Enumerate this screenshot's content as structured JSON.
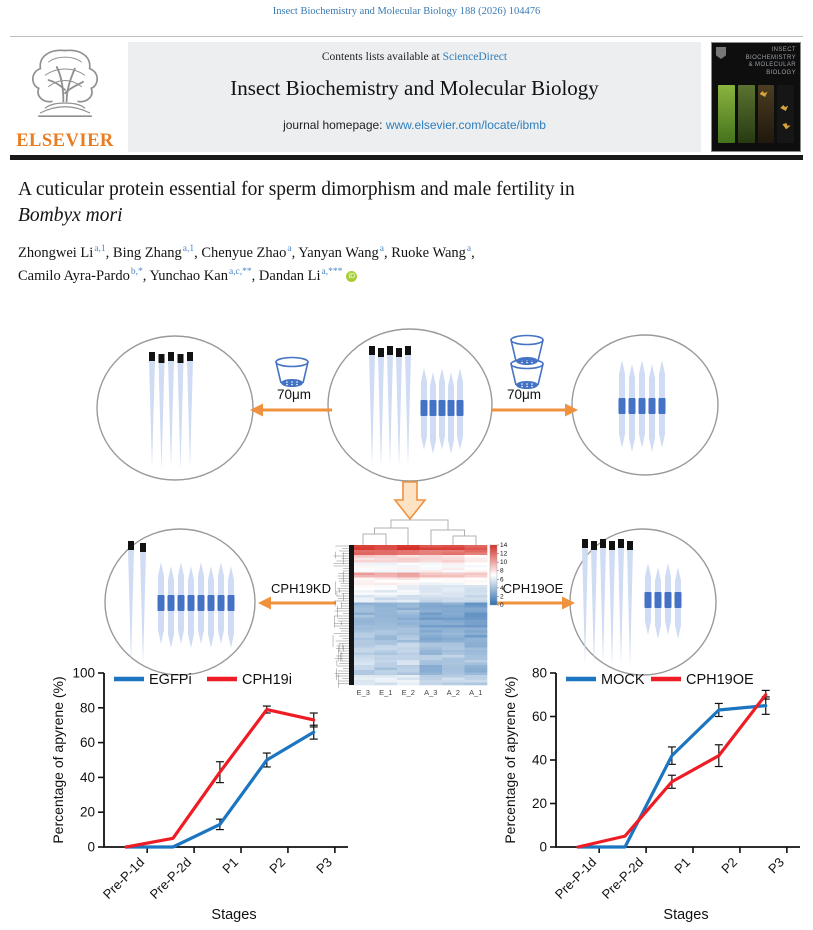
{
  "page": {
    "citation": "Insect Biochemistry and Molecular Biology 188 (2026) 104476"
  },
  "banner": {
    "contents_line_prefix": "Contents lists available at ",
    "sciencedirect": "ScienceDirect",
    "journal_title": "Insect Biochemistry and Molecular Biology",
    "homepage_prefix": "journal homepage: ",
    "homepage_url": "www.elsevier.com/locate/ibmb",
    "elsevier_logo_text": "ELSEVIER",
    "cover_title": "INSECT BIOCHEMISTRY & MOLECULAR BIOLOGY"
  },
  "article": {
    "title_line1": "A cuticular protein essential for sperm dimorphism and male fertility in",
    "title_line2": "Bombyx mori",
    "authors": [
      {
        "name": "Zhongwei Li",
        "sup": "a,1"
      },
      {
        "name": "Bing Zhang",
        "sup": "a,1"
      },
      {
        "name": "Chenyue Zhao",
        "sup": "a"
      },
      {
        "name": "Yanyan Wang",
        "sup": "a"
      },
      {
        "name": "Ruoke Wang",
        "sup": "a"
      },
      {
        "name": "Camilo Ayra-Pardo",
        "sup": "b,*"
      },
      {
        "name": "Yunchao Kan",
        "sup": "a,c,**"
      },
      {
        "name": "Dandan Li",
        "sup": "a,***",
        "orcid": true
      }
    ]
  },
  "abstract_figure": {
    "filter_label_left": "70μm",
    "filter_label_right": "70μm",
    "knockdown_label": "CPH19KD",
    "overexpression_label": "CPH19OE",
    "circles": [
      {
        "id": "pool-eupyrene",
        "eupyrene": 5,
        "apyrene": 0
      },
      {
        "id": "pool-mixed",
        "eupyrene": 5,
        "apyrene": 5
      },
      {
        "id": "pool-apyrene",
        "eupyrene": 0,
        "apyrene": 5
      },
      {
        "id": "cph19kd-result",
        "eupyrene": 2,
        "apyrene": 8
      },
      {
        "id": "cph19oe-result",
        "eupyrene": 6,
        "apyrene": 4
      }
    ],
    "heatmap": {
      "colorbar_ticks": [
        "14",
        "12",
        "10",
        "8",
        "6",
        "4",
        "2",
        "0"
      ],
      "column_labels": [
        "E_3",
        "E_1",
        "E_2",
        "A_3",
        "A_2",
        "A_1"
      ],
      "value_range": [
        0,
        14
      ],
      "bands": [
        {
          "count": 2,
          "E": 13.5,
          "A": 13.0
        },
        {
          "count": 2,
          "E": 11.5,
          "A": 11.8
        },
        {
          "count": 3,
          "E": 8.2,
          "A": 8.0
        },
        {
          "count": 4,
          "E": 6.8,
          "A": 7.2
        },
        {
          "count": 2,
          "E": 9.8,
          "A": 9.2
        },
        {
          "count": 3,
          "E": 7.4,
          "A": 7.0
        },
        {
          "count": 4,
          "E": 6.4,
          "A": 6.0
        },
        {
          "count": 3,
          "E": 5.6,
          "A": 5.2
        },
        {
          "count": 10,
          "E": 3.4,
          "A": 2.6
        },
        {
          "count": 6,
          "E": 4.0,
          "A": 3.0
        },
        {
          "count": 5,
          "E": 4.6,
          "A": 3.8
        },
        {
          "count": 4,
          "E": 5.2,
          "A": 4.4
        },
        {
          "count": 4,
          "E": 4.4,
          "A": 3.6
        },
        {
          "count": 4,
          "E": 5.8,
          "A": 5.0
        }
      ]
    }
  },
  "chart_data": [
    {
      "id": "knockdown-chart",
      "type": "line",
      "categories": [
        "Pre-P-1d",
        "Pre-P-2d",
        "P1",
        "P2",
        "P3"
      ],
      "xlabel": "Stages",
      "ylabel": "Percentage of apyrene (%)",
      "ylim": [
        0,
        100
      ],
      "yticks": [
        0,
        20,
        40,
        60,
        80,
        100
      ],
      "legend_position": "top",
      "series": [
        {
          "name": "EGFPi",
          "color": "#1b75c0",
          "values": [
            0,
            0,
            13,
            50,
            66
          ],
          "errors": [
            0,
            0,
            3,
            4,
            4
          ]
        },
        {
          "name": "CPH19i",
          "color": "#ee1c25",
          "values": [
            0,
            5,
            43,
            79,
            73
          ],
          "errors": [
            0,
            0,
            6,
            2,
            4
          ]
        }
      ]
    },
    {
      "id": "overexpression-chart",
      "type": "line",
      "categories": [
        "Pre-P-1d",
        "Pre-P-2d",
        "P1",
        "P2",
        "P3"
      ],
      "xlabel": "Stages",
      "ylabel": "Percentage of apyrene (%)",
      "ylim": [
        0,
        80
      ],
      "yticks": [
        0,
        20,
        40,
        60,
        80
      ],
      "legend_position": "top",
      "series": [
        {
          "name": "MOCK",
          "color": "#1b75c0",
          "values": [
            0,
            0,
            42,
            63,
            65
          ],
          "errors": [
            0,
            0,
            4,
            3,
            4
          ]
        },
        {
          "name": "CPH19OE",
          "color": "#ee1c25",
          "values": [
            0,
            5,
            30,
            42,
            70
          ],
          "errors": [
            0,
            0,
            3,
            5,
            2
          ]
        }
      ]
    }
  ]
}
